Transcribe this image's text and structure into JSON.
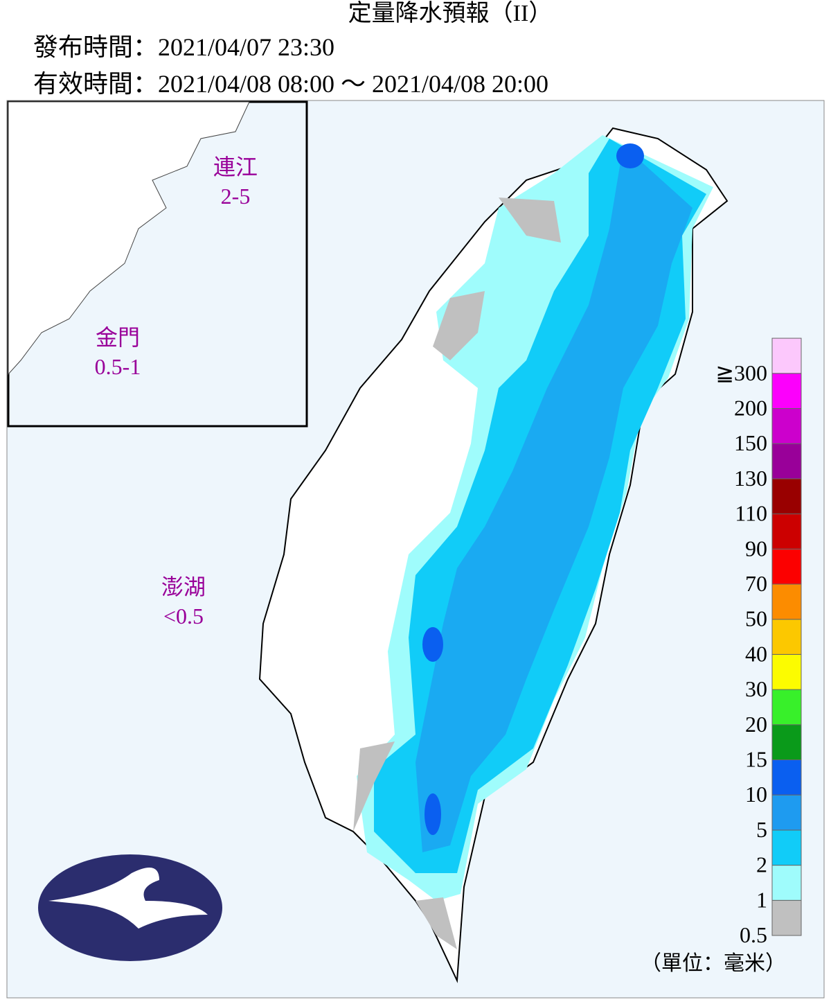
{
  "header": {
    "title": "定量降水預報（II）",
    "issued": "發布時間：2021/04/07 23:30",
    "valid": "有效時間：2021/04/08 08:00 ～ 2021/04/08 20:00"
  },
  "regions": [
    {
      "name": "連江",
      "amount": "2-5"
    },
    {
      "name": "金門",
      "amount": "0.5-1"
    },
    {
      "name": "澎湖",
      "amount": "<0.5"
    }
  ],
  "legend": {
    "levels": [
      {
        "label": "0.5",
        "color": "#c0c0c0"
      },
      {
        "label": "1",
        "color": "#9ffcfc"
      },
      {
        "label": "2",
        "color": "#11ccf8"
      },
      {
        "label": "5",
        "color": "#1e9bf0"
      },
      {
        "label": "10",
        "color": "#0a5ff0"
      },
      {
        "label": "15",
        "color": "#0a9a1a"
      },
      {
        "label": "20",
        "color": "#38f02a"
      },
      {
        "label": "30",
        "color": "#fcfc00"
      },
      {
        "label": "40",
        "color": "#fcc800"
      },
      {
        "label": "50",
        "color": "#fc8c00"
      },
      {
        "label": "70",
        "color": "#fc0000"
      },
      {
        "label": "90",
        "color": "#cc0000"
      },
      {
        "label": "110",
        "color": "#990000"
      },
      {
        "label": "130",
        "color": "#990099"
      },
      {
        "label": "150",
        "color": "#cc00cc"
      },
      {
        "label": "200",
        "color": "#fc00fc"
      },
      {
        "label": "≧300",
        "color": "#fcc8fc"
      }
    ],
    "unit": "（單位：毫米）"
  }
}
